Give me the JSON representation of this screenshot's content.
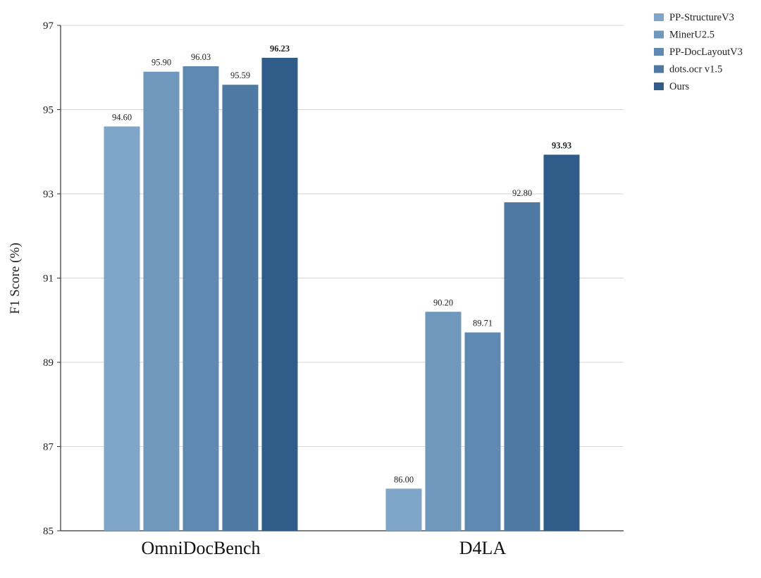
{
  "chart_data": {
    "type": "bar",
    "title": "",
    "xlabel": "",
    "ylabel": "F1 Score (%)",
    "ylim": [
      85,
      97
    ],
    "yticks": [
      85,
      87,
      89,
      91,
      93,
      95,
      97
    ],
    "grid": true,
    "legend_position": "top-right",
    "categories": [
      "OmniDocBench",
      "D4LA"
    ],
    "series": [
      {
        "name": "PP-StructureV3",
        "color": "#7fa6c9",
        "values": [
          94.6,
          86.0
        ],
        "labels": [
          "94.60",
          "86.00"
        ],
        "bold": false
      },
      {
        "name": "MinerU2.5",
        "color": "#7098bd",
        "values": [
          95.9,
          90.2
        ],
        "labels": [
          "95.90",
          "90.20"
        ],
        "bold": false
      },
      {
        "name": "PP-DocLayoutV3",
        "color": "#5f89b1",
        "values": [
          96.03,
          89.71
        ],
        "labels": [
          "96.03",
          "89.71"
        ],
        "bold": false
      },
      {
        "name": "dots.ocr v1.5",
        "color": "#4f79a3",
        "values": [
          95.59,
          92.8
        ],
        "labels": [
          "95.59",
          "92.80"
        ],
        "bold": false
      },
      {
        "name": "Ours",
        "color": "#305c89",
        "values": [
          96.23,
          93.93
        ],
        "labels": [
          "96.23",
          "93.93"
        ],
        "bold": true
      }
    ]
  }
}
